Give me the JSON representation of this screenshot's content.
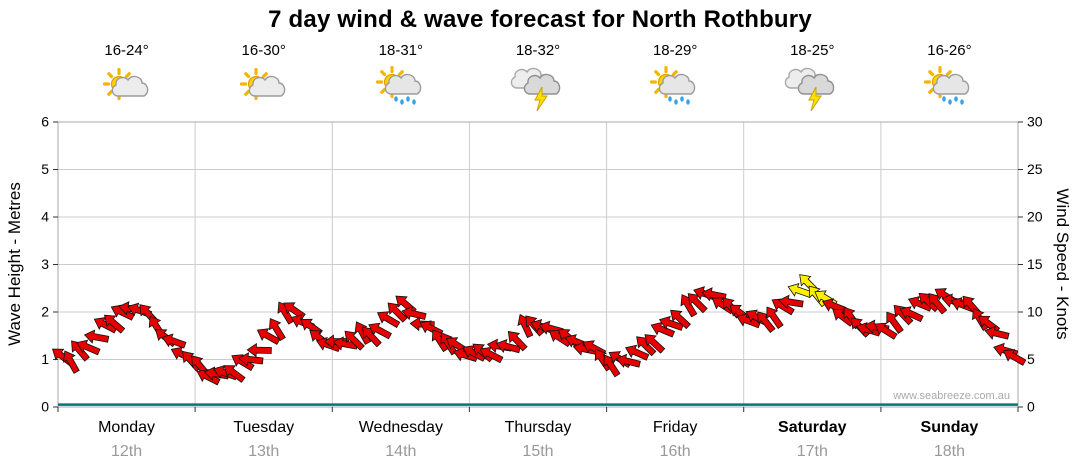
{
  "title": "7 day wind & wave forecast for North Rothbury",
  "watermark": "www.seabreeze.com.au",
  "days": [
    {
      "name": "Monday",
      "date": "12th",
      "temp": "16-24°",
      "icon": "partly-cloudy",
      "bold": false
    },
    {
      "name": "Tuesday",
      "date": "13th",
      "temp": "16-30°",
      "icon": "partly-cloudy",
      "bold": false
    },
    {
      "name": "Wednesday",
      "date": "14th",
      "temp": "18-31°",
      "icon": "sun-showers",
      "bold": false
    },
    {
      "name": "Thursday",
      "date": "15th",
      "temp": "18-32°",
      "icon": "thunderstorm",
      "bold": false
    },
    {
      "name": "Friday",
      "date": "16th",
      "temp": "18-29°",
      "icon": "sun-showers",
      "bold": false
    },
    {
      "name": "Saturday",
      "date": "17th",
      "temp": "18-25°",
      "icon": "thunderstorm",
      "bold": true
    },
    {
      "name": "Sunday",
      "date": "18th",
      "temp": "16-26°",
      "icon": "sun-showers",
      "bold": true
    }
  ],
  "chart_data": {
    "type": "scatter",
    "marker": "wind-arrow",
    "title": "7 day wind & wave forecast for North Rothbury",
    "left_axis": {
      "label": "Wave Height - Metres",
      "min": 0,
      "max": 6,
      "step": 1
    },
    "right_axis": {
      "label": "Wind Speed - Knots",
      "min": 0,
      "max": 30,
      "step": 5
    },
    "x_axis": {
      "days": 7,
      "grid": "day-boundaries"
    },
    "colors": {
      "arrow": "#e60000",
      "arrow_strong": "#ffee00",
      "outline": "#111111",
      "wave_line": "#007878",
      "grid": "#cccccc",
      "border": "#aaaaaa",
      "date_text": "#999999"
    },
    "wind_keyframes_format": "[day, knots, arrow_rotation_deg]",
    "wind_keyframes": [
      [
        0.0,
        5.5,
        205
      ],
      [
        0.1,
        5.0,
        215
      ],
      [
        0.22,
        6.5,
        222
      ],
      [
        0.35,
        8.5,
        210
      ],
      [
        0.48,
        10.0,
        198
      ],
      [
        0.6,
        10.5,
        205
      ],
      [
        0.72,
        8.5,
        218
      ],
      [
        0.85,
        6.5,
        228
      ],
      [
        1.0,
        4.5,
        215
      ],
      [
        1.12,
        3.2,
        202
      ],
      [
        1.25,
        3.6,
        196
      ],
      [
        1.4,
        5.0,
        205
      ],
      [
        1.55,
        7.5,
        214
      ],
      [
        1.68,
        10.5,
        224
      ],
      [
        1.8,
        9.0,
        212
      ],
      [
        1.92,
        7.0,
        202
      ],
      [
        2.05,
        6.5,
        206
      ],
      [
        2.2,
        7.5,
        214
      ],
      [
        2.35,
        8.0,
        222
      ],
      [
        2.5,
        11.0,
        214
      ],
      [
        2.62,
        9.5,
        206
      ],
      [
        2.75,
        7.5,
        210
      ],
      [
        2.88,
        6.5,
        218
      ],
      [
        3.0,
        5.5,
        214
      ],
      [
        3.15,
        5.8,
        206
      ],
      [
        3.3,
        6.5,
        210
      ],
      [
        3.45,
        9.0,
        219
      ],
      [
        3.6,
        8.0,
        214
      ],
      [
        3.75,
        7.0,
        206
      ],
      [
        3.9,
        6.0,
        210
      ],
      [
        4.02,
        4.5,
        214
      ],
      [
        4.15,
        5.0,
        219
      ],
      [
        4.3,
        6.5,
        214
      ],
      [
        4.45,
        8.5,
        210
      ],
      [
        4.6,
        10.5,
        214
      ],
      [
        4.72,
        12.0,
        219
      ],
      [
        4.85,
        11.0,
        214
      ],
      [
        5.0,
        9.5,
        210
      ],
      [
        5.15,
        9.0,
        214
      ],
      [
        5.3,
        10.5,
        219
      ],
      [
        5.45,
        13.0,
        214
      ],
      [
        5.58,
        11.5,
        210
      ],
      [
        5.7,
        10.0,
        214
      ],
      [
        5.85,
        8.5,
        219
      ],
      [
        6.0,
        8.0,
        214
      ],
      [
        6.15,
        9.5,
        210
      ],
      [
        6.32,
        11.0,
        214
      ],
      [
        6.5,
        11.5,
        219
      ],
      [
        6.65,
        10.5,
        214
      ],
      [
        6.8,
        8.5,
        210
      ],
      [
        6.92,
        6.0,
        204
      ],
      [
        7.0,
        4.5,
        198
      ]
    ],
    "strong_wind_window": {
      "from": 5.35,
      "to": 5.6
    },
    "wave_height_m": 0.05
  }
}
